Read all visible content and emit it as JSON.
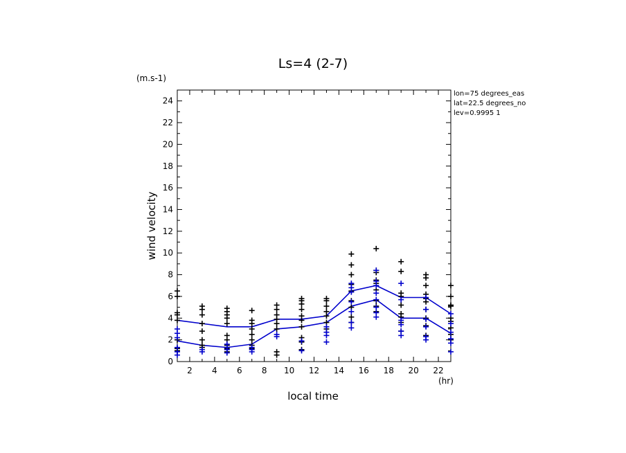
{
  "chart_data": {
    "type": "scatter",
    "title": "Ls=4 (2-7)",
    "y_unit": "(m.s-1)",
    "x_unit": "(hr)",
    "xlabel": "local time",
    "ylabel": "wind velocity",
    "xlim": [
      1,
      23
    ],
    "ylim": [
      0,
      25
    ],
    "x_ticks": [
      2,
      4,
      6,
      8,
      10,
      12,
      14,
      16,
      18,
      20,
      22
    ],
    "y_ticks": [
      0,
      2,
      4,
      6,
      8,
      10,
      12,
      14,
      16,
      18,
      20,
      22,
      24
    ],
    "info": [
      "lon=75 degrees_eas",
      "lat=22.5 degrees_no",
      "lev=0.9995 1"
    ],
    "colors": {
      "black_markers": "#000000",
      "blue_markers": "#0000cc",
      "lines": "#0000cc"
    },
    "lines": [
      {
        "x": [
          1,
          3,
          5,
          7,
          9,
          11,
          13,
          15,
          17,
          19,
          21,
          23
        ],
        "y": [
          3.8,
          3.5,
          3.2,
          3.2,
          3.9,
          3.9,
          4.2,
          6.5,
          7.0,
          5.9,
          5.9,
          4.4
        ]
      },
      {
        "x": [
          1,
          3,
          5,
          7,
          9,
          11,
          13,
          15,
          17,
          19,
          21,
          23
        ],
        "y": [
          1.9,
          1.5,
          1.3,
          1.6,
          3.0,
          3.2,
          3.6,
          5.1,
          5.7,
          4.0,
          4.0,
          2.6
        ]
      }
    ],
    "black_points": [
      {
        "x": 1,
        "y": [
          6.5,
          6.0,
          4.5,
          4.3,
          3.8,
          2.0,
          1.2,
          1.0
        ]
      },
      {
        "x": 3,
        "y": [
          5.1,
          4.8,
          4.3,
          3.5,
          2.8,
          2.0,
          1.5,
          1.3
        ]
      },
      {
        "x": 5,
        "y": [
          4.9,
          4.6,
          4.3,
          4.0,
          3.5,
          2.4,
          2.0,
          1.5,
          1.2,
          0.9
        ]
      },
      {
        "x": 7,
        "y": [
          4.7,
          3.8,
          3.5,
          3.0,
          2.5,
          2.0,
          1.5,
          1.2
        ]
      },
      {
        "x": 9,
        "y": [
          5.2,
          4.8,
          4.3,
          3.9,
          3.5,
          3.0,
          0.9,
          0.6
        ]
      },
      {
        "x": 11,
        "y": [
          5.8,
          5.6,
          5.3,
          4.8,
          4.2,
          3.8,
          3.2,
          2.2,
          1.8,
          1.1
        ]
      },
      {
        "x": 13,
        "y": [
          5.8,
          5.6,
          5.1,
          4.6,
          4.2,
          3.6,
          3.0
        ]
      },
      {
        "x": 15,
        "y": [
          9.9,
          8.9,
          8.0,
          7.1,
          6.5,
          5.6,
          5.0,
          4.1,
          3.6
        ]
      },
      {
        "x": 17,
        "y": [
          10.4,
          8.4,
          8.2,
          7.5,
          7.2,
          6.6,
          5.6,
          5.1,
          4.6
        ]
      },
      {
        "x": 19,
        "y": [
          9.2,
          8.3,
          6.3,
          6.0,
          5.2,
          4.4,
          4.1,
          3.6,
          2.8
        ]
      },
      {
        "x": 21,
        "y": [
          8.0,
          7.7,
          7.0,
          6.2,
          5.8,
          5.5,
          4.8,
          4.0,
          3.3,
          2.4
        ]
      },
      {
        "x": 23,
        "y": [
          7.0,
          6.0,
          5.2,
          5.1,
          4.0,
          3.7,
          3.1,
          2.5,
          2.0
        ]
      }
    ],
    "blue_points": [
      {
        "x": 1,
        "y": [
          3.0,
          2.6,
          2.2,
          1.3,
          0.9,
          0.6
        ]
      },
      {
        "x": 3,
        "y": [
          1.1,
          0.9
        ]
      },
      {
        "x": 5,
        "y": [
          1.6,
          1.3,
          1.1,
          0.8
        ]
      },
      {
        "x": 7,
        "y": [
          1.3,
          1.1,
          0.9
        ]
      },
      {
        "x": 9,
        "y": [
          2.5,
          2.3
        ]
      },
      {
        "x": 11,
        "y": [
          1.9,
          1.0
        ]
      },
      {
        "x": 13,
        "y": [
          3.2,
          2.7,
          2.4,
          1.8
        ]
      },
      {
        "x": 15,
        "y": [
          7.2,
          6.8,
          6.4,
          5.5,
          4.6,
          3.6,
          3.1
        ]
      },
      {
        "x": 17,
        "y": [
          8.4,
          7.4,
          7.0,
          6.3,
          5.7,
          5.0,
          4.5,
          4.1
        ]
      },
      {
        "x": 19,
        "y": [
          7.2,
          5.7,
          3.8,
          3.4,
          2.8,
          2.4
        ]
      },
      {
        "x": 21,
        "y": [
          5.9,
          4.8,
          3.9,
          3.2,
          2.3,
          2.0
        ]
      },
      {
        "x": 23,
        "y": [
          4.4,
          3.5,
          2.7,
          2.1,
          1.7,
          0.9
        ]
      }
    ]
  }
}
